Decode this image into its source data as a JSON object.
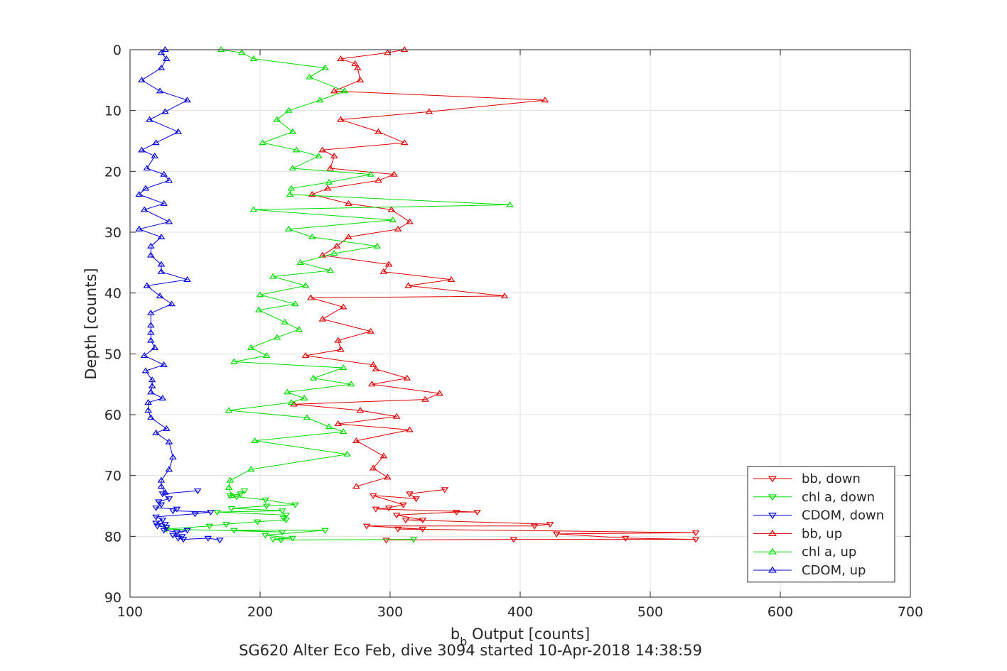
{
  "chart_data": {
    "type": "line",
    "title": "SG620 Alter Eco Feb, dive 3094 started 10-Apr-2018 14:38:59",
    "xlabel": {
      "main": "b",
      "sub": "b",
      "rest": " Output [counts]"
    },
    "ylabel": "Depth [counts]",
    "xlim": [
      100,
      700
    ],
    "ylim": [
      0,
      90
    ],
    "y_reversed": true,
    "grid": true,
    "legend_position": "bottom-right",
    "xticks": [
      "100",
      "200",
      "300",
      "400",
      "500",
      "600",
      "700"
    ],
    "yticks": [
      "0",
      "10",
      "20",
      "30",
      "40",
      "50",
      "60",
      "70",
      "80",
      "90"
    ],
    "series": [
      {
        "name": "bb, down",
        "color": "#e00000",
        "marker": "down",
        "points": [
          [
            342,
            72.3
          ],
          [
            315,
            73.0
          ],
          [
            320,
            73.8
          ],
          [
            287,
            73.3
          ],
          [
            310,
            74.8
          ],
          [
            299,
            75.3
          ],
          [
            289,
            75.5
          ],
          [
            367,
            76.0
          ],
          [
            351,
            76.0
          ],
          [
            305,
            76.5
          ],
          [
            325,
            77.3
          ],
          [
            312,
            77.3
          ],
          [
            423,
            78.0
          ],
          [
            411,
            78.3
          ],
          [
            282,
            78.3
          ],
          [
            325,
            78.8
          ],
          [
            306,
            78.8
          ],
          [
            535,
            79.4
          ],
          [
            428,
            79.6
          ],
          [
            481,
            80.3
          ],
          [
            535,
            80.5
          ],
          [
            395,
            80.5
          ],
          [
            297,
            80.6
          ]
        ]
      },
      {
        "name": "chl a, down",
        "color": "#00dd00",
        "marker": "down",
        "points": [
          [
            188,
            72.5
          ],
          [
            185,
            73.0
          ],
          [
            177,
            73.3
          ],
          [
            182,
            73.5
          ],
          [
            204,
            74.0
          ],
          [
            227,
            74.8
          ],
          [
            205,
            75.0
          ],
          [
            178,
            75.4
          ],
          [
            217,
            75.8
          ],
          [
            167,
            76.0
          ],
          [
            220,
            76.5
          ],
          [
            218,
            77.0
          ],
          [
            220,
            77.3
          ],
          [
            198,
            77.6
          ],
          [
            174,
            78.0
          ],
          [
            161,
            78.3
          ],
          [
            128,
            78.8
          ],
          [
            217,
            79.3
          ],
          [
            180,
            79.0
          ],
          [
            250,
            79.0
          ],
          [
            204,
            79.8
          ],
          [
            225,
            80.3
          ],
          [
            210,
            80.5
          ],
          [
            216,
            80.6
          ],
          [
            318,
            80.5
          ]
        ]
      },
      {
        "name": "CDOM, down",
        "color": "#0000dd",
        "marker": "down",
        "points": [
          [
            152,
            72.5
          ],
          [
            125,
            73.0
          ],
          [
            130,
            73.8
          ],
          [
            122,
            74.3
          ],
          [
            124,
            74.8
          ],
          [
            120,
            75.3
          ],
          [
            136,
            75.5
          ],
          [
            133,
            75.8
          ],
          [
            162,
            76.0
          ],
          [
            150,
            76.3
          ],
          [
            120,
            76.8
          ],
          [
            125,
            77.3
          ],
          [
            120,
            77.8
          ],
          [
            127,
            78.0
          ],
          [
            121,
            78.3
          ],
          [
            128,
            78.5
          ],
          [
            126,
            79.0
          ],
          [
            136,
            79.3
          ],
          [
            144,
            79.0
          ],
          [
            133,
            79.8
          ],
          [
            140,
            80.0
          ],
          [
            137,
            80.3
          ],
          [
            141,
            80.5
          ],
          [
            160,
            80.3
          ],
          [
            169,
            80.6
          ]
        ]
      },
      {
        "name": "bb, up",
        "color": "#e00000",
        "marker": "up",
        "points": [
          [
            311,
            0
          ],
          [
            298,
            0.5
          ],
          [
            262,
            1.5
          ],
          [
            273,
            2.3
          ],
          [
            275,
            3.0
          ],
          [
            277,
            5.0
          ],
          [
            257,
            6.8
          ],
          [
            419,
            8.3
          ],
          [
            330,
            10.2
          ],
          [
            262,
            11.5
          ],
          [
            291,
            13.5
          ],
          [
            311,
            15.3
          ],
          [
            248,
            16.5
          ],
          [
            257,
            17.5
          ],
          [
            254,
            19.5
          ],
          [
            303,
            20.5
          ],
          [
            291,
            21.5
          ],
          [
            252,
            22.8
          ],
          [
            240,
            23.8
          ],
          [
            268,
            25.3
          ],
          [
            301,
            26.3
          ],
          [
            315,
            28.3
          ],
          [
            306,
            29.5
          ],
          [
            268,
            30.8
          ],
          [
            259,
            32.3
          ],
          [
            248,
            33.8
          ],
          [
            299,
            35.3
          ],
          [
            295,
            36.5
          ],
          [
            347,
            37.8
          ],
          [
            314,
            38.8
          ],
          [
            388,
            40.5
          ],
          [
            239,
            40.8
          ],
          [
            264,
            42.3
          ],
          [
            248,
            44.3
          ],
          [
            285,
            46.3
          ],
          [
            260,
            47.8
          ],
          [
            262,
            49.3
          ],
          [
            235,
            50.3
          ],
          [
            287,
            51.8
          ],
          [
            289,
            52.5
          ],
          [
            313,
            54.0
          ],
          [
            286,
            55.0
          ],
          [
            338,
            56.5
          ],
          [
            327,
            57.5
          ],
          [
            226,
            58.3
          ],
          [
            277,
            59.3
          ],
          [
            305,
            60.3
          ],
          [
            260,
            61.5
          ],
          [
            315,
            62.5
          ],
          [
            274,
            64.3
          ],
          [
            295,
            66.8
          ],
          [
            287,
            68.8
          ],
          [
            298,
            70.3
          ],
          [
            274,
            71.8
          ]
        ]
      },
      {
        "name": "chl a, up",
        "color": "#00dd00",
        "marker": "up",
        "points": [
          [
            170,
            0
          ],
          [
            186,
            0.5
          ],
          [
            195,
            1.5
          ],
          [
            250,
            3.0
          ],
          [
            238,
            4.5
          ],
          [
            265,
            6.8
          ],
          [
            246,
            8.3
          ],
          [
            222,
            10.0
          ],
          [
            213,
            11.5
          ],
          [
            225,
            13.5
          ],
          [
            202,
            15.3
          ],
          [
            228,
            16.5
          ],
          [
            245,
            17.5
          ],
          [
            225,
            19.5
          ],
          [
            285,
            20.5
          ],
          [
            253,
            21.8
          ],
          [
            224,
            22.8
          ],
          [
            223,
            23.8
          ],
          [
            392,
            25.5
          ],
          [
            195,
            26.3
          ],
          [
            302,
            28.0
          ],
          [
            222,
            29.5
          ],
          [
            240,
            30.8
          ],
          [
            290,
            32.3
          ],
          [
            257,
            33.5
          ],
          [
            231,
            35.0
          ],
          [
            254,
            36.3
          ],
          [
            210,
            37.3
          ],
          [
            235,
            38.8
          ],
          [
            200,
            40.3
          ],
          [
            227,
            41.8
          ],
          [
            199,
            42.8
          ],
          [
            219,
            44.8
          ],
          [
            230,
            46.0
          ],
          [
            213,
            47.3
          ],
          [
            193,
            49.0
          ],
          [
            205,
            50.3
          ],
          [
            180,
            51.3
          ],
          [
            264,
            52.3
          ],
          [
            241,
            54.0
          ],
          [
            270,
            55.0
          ],
          [
            221,
            56.3
          ],
          [
            234,
            57.3
          ],
          [
            224,
            58.0
          ],
          [
            176,
            59.3
          ],
          [
            236,
            60.5
          ],
          [
            253,
            62.0
          ],
          [
            264,
            62.8
          ],
          [
            196,
            64.3
          ],
          [
            267,
            66.5
          ],
          [
            193,
            69.0
          ],
          [
            177,
            70.8
          ],
          [
            176,
            72.0
          ],
          [
            178,
            73.3
          ]
        ]
      },
      {
        "name": "CDOM, up",
        "color": "#0000dd",
        "marker": "up",
        "points": [
          [
            127,
            0
          ],
          [
            124,
            0.5
          ],
          [
            128,
            1.5
          ],
          [
            124,
            3.0
          ],
          [
            109,
            5.0
          ],
          [
            123,
            6.8
          ],
          [
            144,
            8.3
          ],
          [
            127,
            10.2
          ],
          [
            115,
            11.5
          ],
          [
            137,
            13.5
          ],
          [
            120,
            15.3
          ],
          [
            109,
            16.5
          ],
          [
            119,
            17.5
          ],
          [
            113,
            19.5
          ],
          [
            126,
            20.5
          ],
          [
            130,
            21.5
          ],
          [
            112,
            22.8
          ],
          [
            107,
            23.8
          ],
          [
            126,
            25.3
          ],
          [
            111,
            26.3
          ],
          [
            130,
            28.3
          ],
          [
            107,
            29.5
          ],
          [
            124,
            30.8
          ],
          [
            116,
            32.3
          ],
          [
            116,
            33.8
          ],
          [
            124,
            35.3
          ],
          [
            124,
            36.5
          ],
          [
            144,
            37.8
          ],
          [
            113,
            38.8
          ],
          [
            123,
            40.5
          ],
          [
            132,
            41.8
          ],
          [
            116,
            43.3
          ],
          [
            116,
            45.3
          ],
          [
            116,
            46.5
          ],
          [
            116,
            47.8
          ],
          [
            119,
            49.0
          ],
          [
            111,
            50.3
          ],
          [
            126,
            51.8
          ],
          [
            112,
            52.8
          ],
          [
            117,
            54.3
          ],
          [
            117,
            55.3
          ],
          [
            116,
            56.3
          ],
          [
            125,
            57.3
          ],
          [
            114,
            58.0
          ],
          [
            114,
            59.3
          ],
          [
            116,
            60.5
          ],
          [
            128,
            62.3
          ],
          [
            120,
            63.0
          ],
          [
            130,
            64.5
          ],
          [
            133,
            67.0
          ],
          [
            130,
            69.0
          ],
          [
            124,
            70.8
          ],
          [
            124,
            71.8
          ],
          [
            127,
            72.8
          ]
        ]
      }
    ]
  }
}
